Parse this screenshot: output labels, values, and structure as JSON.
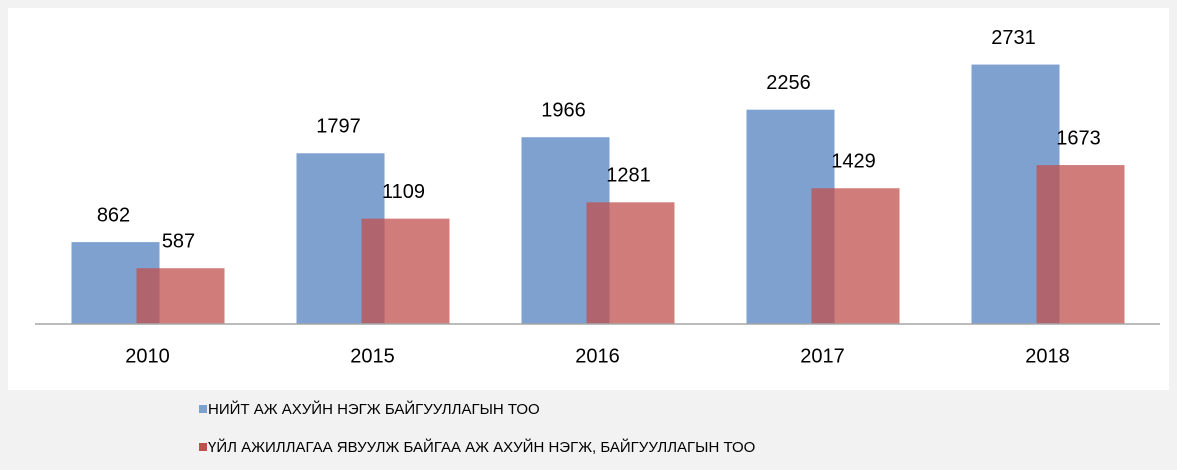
{
  "chart_data": {
    "type": "bar",
    "categories": [
      "2010",
      "2015",
      "2016",
      "2017",
      "2018"
    ],
    "series": [
      {
        "name": "НИЙТ АЖ АХУЙН НЭГЖ БАЙГУУЛЛАГЫН  ТОО",
        "color": "#7ea1cf",
        "values": [
          862,
          1797,
          1966,
          2256,
          2731
        ]
      },
      {
        "name": "ҮЙЛ АЖИЛЛАГАА ЯВУУЛЖ БАЙГАА АЖ АХУЙН НЭГЖ, БАЙГУУЛЛАГЫН  ТОО",
        "color": "#c0504d",
        "values": [
          587,
          1109,
          1281,
          1429,
          1673
        ]
      }
    ],
    "ylim": [
      0,
      3200
    ]
  }
}
